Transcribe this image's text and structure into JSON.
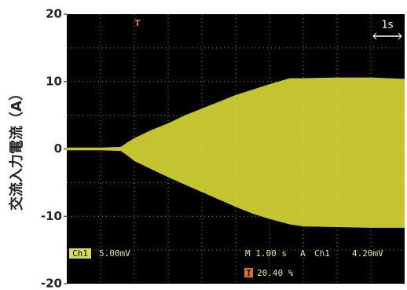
{
  "chart_data": {
    "type": "area",
    "ylabel": "交流入力電流（A）",
    "x": [
      0,
      1,
      1.6,
      1.8,
      2,
      2.5,
      3,
      3.5,
      4,
      4.5,
      5,
      5.5,
      6,
      6.6,
      7,
      8,
      9,
      10
    ],
    "series": [
      {
        "color": "#e6e63a",
        "values": [
          0.2,
          0.2,
          0.3,
          1,
          1.6,
          2.8,
          3.8,
          5,
          6,
          7,
          8,
          8.8,
          9.6,
          10.5,
          10.5,
          10.6,
          10.6,
          10.4
        ]
      },
      {
        "color": "#e6e63a",
        "values": [
          -0.2,
          -0.2,
          -0.3,
          -1,
          -1.8,
          -3,
          -4.2,
          -5.3,
          -6.4,
          -7.5,
          -8.6,
          -9.6,
          -10.4,
          -11.2,
          -11.5,
          -11.6,
          -11.7,
          -11.7
        ]
      }
    ],
    "xlim": [
      0,
      10
    ],
    "ylim": [
      -20,
      20
    ],
    "yticks": [
      20,
      10,
      0,
      -10,
      -20
    ],
    "background": "#000000",
    "grid_color": "#8a8a5a",
    "scale_label": "1s",
    "trigger_marker": "T",
    "readouts": {
      "channel": "Ch1",
      "volts": "5.00mV",
      "time": "M 1.00 s",
      "mode": "A",
      "trig_channel": "Ch1",
      "trig_level": "4.20mV",
      "trig_position_marker": "T",
      "trig_position": "20.40 %"
    }
  }
}
